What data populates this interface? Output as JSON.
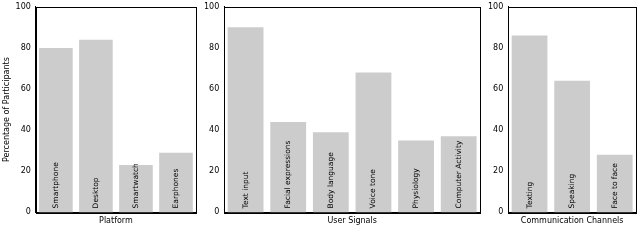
{
  "chart_data": [
    {
      "type": "bar",
      "x_label": "Platform",
      "y_label": "Percentage of Participants",
      "categories": [
        "Smartphone",
        "Desktop",
        "Smartwatch",
        "Earphones"
      ],
      "values": [
        80,
        84,
        23,
        29
      ],
      "color": "#cccccc",
      "ylim": [
        0,
        100
      ],
      "yticks": [
        0,
        20,
        40,
        60,
        80,
        100
      ],
      "grid": false
    },
    {
      "type": "bar",
      "x_label": "User Signals",
      "categories": [
        "Text input",
        "Facial expressions",
        "Body language",
        "Voice tone",
        "Physiology",
        "Computer Activity"
      ],
      "values": [
        90,
        44,
        39,
        68,
        35,
        37
      ],
      "color": "#cccccc",
      "ylim": [
        0,
        100
      ],
      "yticks": [
        0,
        20,
        40,
        60,
        80,
        100
      ],
      "grid": false
    },
    {
      "type": "bar",
      "x_label": "Communication Channels",
      "categories": [
        "Texting",
        "Speaking",
        "Face to face"
      ],
      "values": [
        86,
        64,
        28
      ],
      "color": "#cccccc",
      "ylim": [
        0,
        100
      ],
      "yticks": [
        0,
        20,
        40,
        60,
        80,
        100
      ],
      "grid": false
    }
  ]
}
